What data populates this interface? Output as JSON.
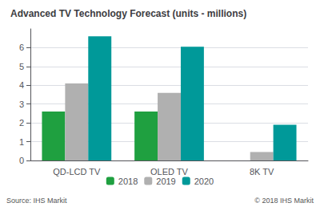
{
  "chart_data": {
    "type": "bar",
    "title": "Advanced TV Technology Forecast (units - millions)",
    "categories": [
      "QD-LCD TV",
      "OLED TV",
      "8K TV"
    ],
    "series": [
      {
        "name": "2018",
        "color": "#1fa040",
        "values": [
          2.6,
          2.6,
          0.0
        ]
      },
      {
        "name": "2019",
        "color": "#b0b0b0",
        "values": [
          4.1,
          3.6,
          0.45
        ]
      },
      {
        "name": "2020",
        "color": "#009999",
        "values": [
          6.6,
          6.05,
          1.9
        ]
      }
    ],
    "ylim": [
      0,
      7
    ],
    "yticks": [
      0,
      1,
      2,
      3,
      4,
      5,
      6
    ],
    "grid": true,
    "legend": "bottom",
    "annotations": [
      "Source: IHS Markit",
      "© 2018 IHS Markit"
    ]
  }
}
